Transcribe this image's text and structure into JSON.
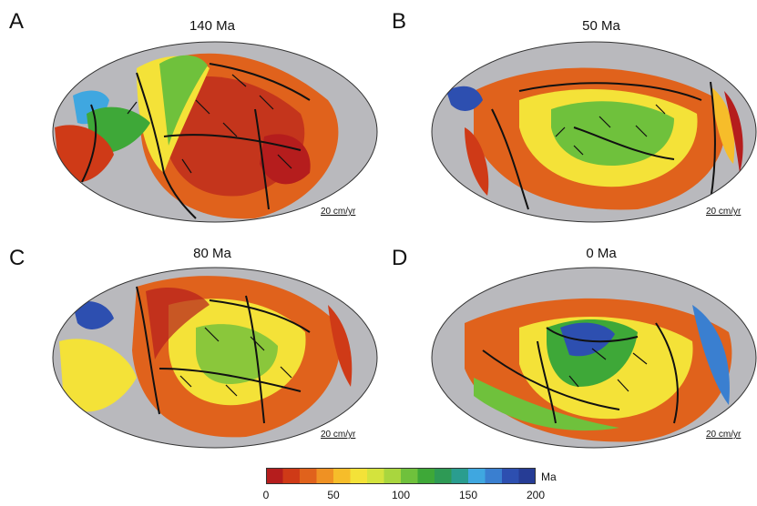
{
  "panels": [
    {
      "letter": "A",
      "age": "140 Ma",
      "scale": "20 cm/yr"
    },
    {
      "letter": "B",
      "age": "50 Ma",
      "scale": "20 cm/yr"
    },
    {
      "letter": "C",
      "age": "80 Ma",
      "scale": "20 cm/yr"
    },
    {
      "letter": "D",
      "age": "0 Ma",
      "scale": "20 cm/yr"
    }
  ],
  "colorbar": {
    "unit": "Ma",
    "ticks": [
      "0",
      "50",
      "100",
      "150",
      "200"
    ],
    "colors": [
      "#b51d1d",
      "#cf3a17",
      "#e0621c",
      "#ef9123",
      "#f6bd2a",
      "#f4e238",
      "#d4e33d",
      "#a9d63e",
      "#6fc13c",
      "#3ea838",
      "#2e9a55",
      "#2a9d8f",
      "#3fa7e0",
      "#3a7fd0",
      "#2d4fb0",
      "#263c95"
    ]
  },
  "colors": {
    "continent": "#b9b9bd",
    "plate_boundary": "#111111",
    "arrow": "#111111"
  }
}
